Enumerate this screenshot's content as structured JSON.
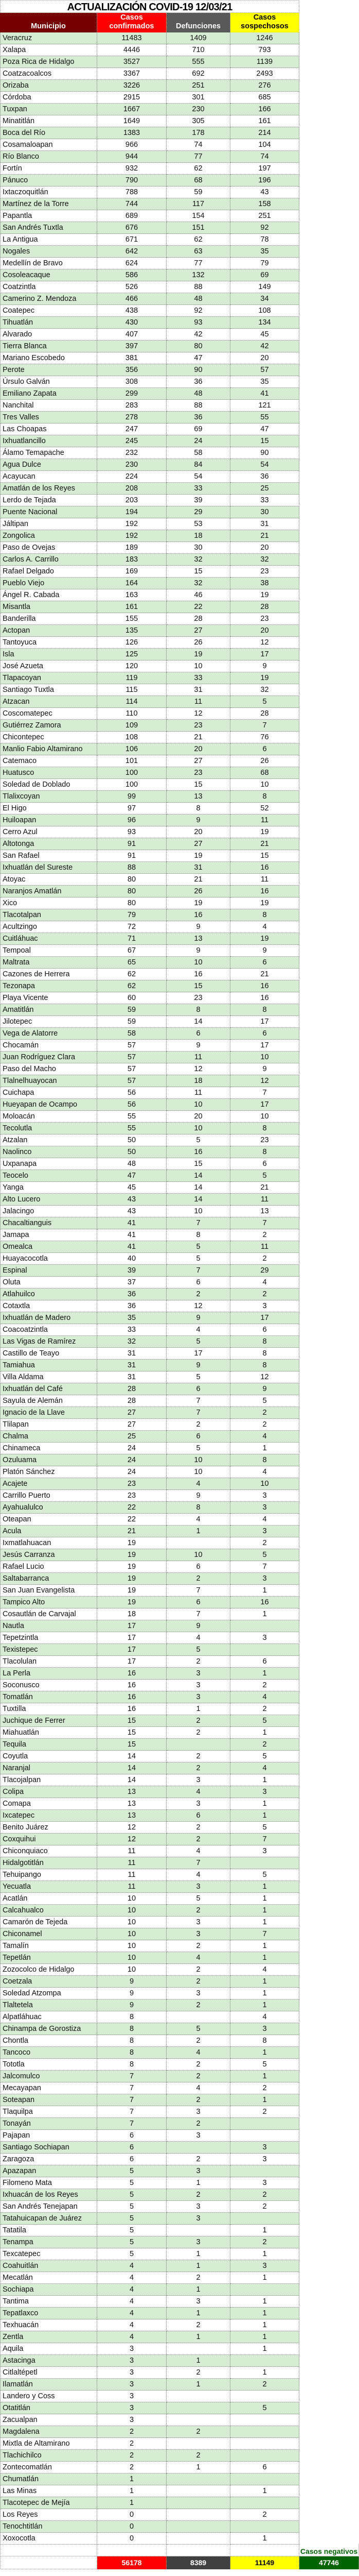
{
  "title": "ACTUALIZACIÓN COVID-19 12/03/21",
  "headers": {
    "municipio": "Municipio",
    "confirmados": "Casos confirmados",
    "defunciones": "Defunciones",
    "sospechosos": "Casos sospechosos"
  },
  "colors": {
    "municipio_header": "#760000",
    "confirmados": "#ff0000",
    "defunciones": "#595959",
    "defunciones_total": "#404040",
    "sospechosos": "#ffff00",
    "negativos": "#006400",
    "row_alt": "#d6ecd3"
  },
  "rows": [
    [
      "Veracruz",
      "11483",
      "1409",
      "1246"
    ],
    [
      "Xalapa",
      "4446",
      "710",
      "793"
    ],
    [
      "Poza Rica de Hidalgo",
      "3527",
      "555",
      "1139"
    ],
    [
      "Coatzacoalcos",
      "3367",
      "692",
      "2493"
    ],
    [
      "Orizaba",
      "3226",
      "251",
      "276"
    ],
    [
      "Córdoba",
      "2915",
      "301",
      "685"
    ],
    [
      "Tuxpan",
      "1667",
      "230",
      "166"
    ],
    [
      "Minatitlán",
      "1649",
      "305",
      "161"
    ],
    [
      "Boca del Río",
      "1383",
      "178",
      "214"
    ],
    [
      "Cosamaloapan",
      "966",
      "74",
      "104"
    ],
    [
      "Río Blanco",
      "944",
      "77",
      "74"
    ],
    [
      "Fortín",
      "932",
      "62",
      "197"
    ],
    [
      "Pánuco",
      "790",
      "68",
      "196"
    ],
    [
      "Ixtaczoquitlán",
      "788",
      "59",
      "43"
    ],
    [
      "Martínez de la Torre",
      "744",
      "117",
      "158"
    ],
    [
      "Papantla",
      "689",
      "154",
      "251"
    ],
    [
      "San Andrés Tuxtla",
      "676",
      "151",
      "92"
    ],
    [
      "La Antigua",
      "671",
      "62",
      "78"
    ],
    [
      "Nogales",
      "642",
      "63",
      "35"
    ],
    [
      "Medellín de Bravo",
      "624",
      "77",
      "79"
    ],
    [
      "Cosoleacaque",
      "586",
      "132",
      "69"
    ],
    [
      "Coatzintla",
      "526",
      "88",
      "149"
    ],
    [
      "Camerino Z. Mendoza",
      "466",
      "48",
      "34"
    ],
    [
      "Coatepec",
      "438",
      "92",
      "108"
    ],
    [
      "Tihuatlán",
      "430",
      "93",
      "134"
    ],
    [
      "Alvarado",
      "407",
      "42",
      "45"
    ],
    [
      "Tierra Blanca",
      "397",
      "80",
      "42"
    ],
    [
      "Mariano Escobedo",
      "381",
      "47",
      "20"
    ],
    [
      "Perote",
      "356",
      "90",
      "57"
    ],
    [
      "Úrsulo Galván",
      "308",
      "36",
      "35"
    ],
    [
      "Emiliano Zapata",
      "299",
      "48",
      "41"
    ],
    [
      "Nanchital",
      "283",
      "88",
      "121"
    ],
    [
      "Tres Valles",
      "278",
      "36",
      "55"
    ],
    [
      "Las Choapas",
      "247",
      "69",
      "47"
    ],
    [
      "Ixhuatlancillo",
      "245",
      "24",
      "15"
    ],
    [
      "Álamo Temapache",
      "232",
      "58",
      "90"
    ],
    [
      "Agua Dulce",
      "230",
      "84",
      "54"
    ],
    [
      "Acayucan",
      "224",
      "54",
      "36"
    ],
    [
      "Amatlán de los Reyes",
      "208",
      "33",
      "25"
    ],
    [
      "Lerdo de Tejada",
      "203",
      "39",
      "33"
    ],
    [
      "Puente Nacional",
      "194",
      "29",
      "30"
    ],
    [
      "Jáltipan",
      "192",
      "53",
      "31"
    ],
    [
      "Zongolica",
      "192",
      "18",
      "21"
    ],
    [
      "Paso de Ovejas",
      "189",
      "30",
      "20"
    ],
    [
      "Carlos A. Carrillo",
      "183",
      "32",
      "32"
    ],
    [
      "Rafael Delgado",
      "169",
      "15",
      "23"
    ],
    [
      "Pueblo Viejo",
      "164",
      "32",
      "38"
    ],
    [
      "Ángel R. Cabada",
      "163",
      "46",
      "19"
    ],
    [
      "Misantla",
      "161",
      "22",
      "28"
    ],
    [
      "Banderilla",
      "155",
      "28",
      "23"
    ],
    [
      "Actopan",
      "135",
      "27",
      "20"
    ],
    [
      "Tantoyuca",
      "126",
      "26",
      "12"
    ],
    [
      "Isla",
      "125",
      "19",
      "17"
    ],
    [
      "José Azueta",
      "120",
      "10",
      "9"
    ],
    [
      "Tlapacoyan",
      "119",
      "33",
      "19"
    ],
    [
      "Santiago Tuxtla",
      "115",
      "31",
      "32"
    ],
    [
      "Atzacan",
      "114",
      "11",
      "5"
    ],
    [
      "Coscomatepec",
      "110",
      "12",
      "28"
    ],
    [
      "Gutiérrez Zamora",
      "109",
      "23",
      "7"
    ],
    [
      "Chicontepec",
      "108",
      "21",
      "76"
    ],
    [
      "Manlio Fabio Altamirano",
      "106",
      "20",
      "6"
    ],
    [
      "Catemaco",
      "101",
      "27",
      "26"
    ],
    [
      "Huatusco",
      "100",
      "23",
      "68"
    ],
    [
      "Soledad de Doblado",
      "100",
      "15",
      "10"
    ],
    [
      "Tlalixcoyan",
      "99",
      "13",
      "8"
    ],
    [
      "El Higo",
      "97",
      "8",
      "52"
    ],
    [
      "Huiloapan",
      "96",
      "9",
      "11"
    ],
    [
      "Cerro Azul",
      "93",
      "20",
      "19"
    ],
    [
      "Altotonga",
      "91",
      "27",
      "21"
    ],
    [
      "San Rafael",
      "91",
      "19",
      "15"
    ],
    [
      "Ixhuatlán del Sureste",
      "88",
      "31",
      "16"
    ],
    [
      "Atoyac",
      "80",
      "21",
      "11"
    ],
    [
      "Naranjos Amatlán",
      "80",
      "26",
      "16"
    ],
    [
      "Xico",
      "80",
      "19",
      "19"
    ],
    [
      "Tlacotalpan",
      "79",
      "16",
      "8"
    ],
    [
      "Acultzingo",
      "72",
      "9",
      "4"
    ],
    [
      "Cuitláhuac",
      "71",
      "13",
      "19"
    ],
    [
      "Tempoal",
      "67",
      "9",
      "9"
    ],
    [
      "Maltrata",
      "65",
      "10",
      "6"
    ],
    [
      "Cazones de Herrera",
      "62",
      "16",
      "21"
    ],
    [
      "Tezonapa",
      "62",
      "15",
      "16"
    ],
    [
      "Playa Vicente",
      "60",
      "23",
      "16"
    ],
    [
      "Amatitlán",
      "59",
      "8",
      "8"
    ],
    [
      "Jilotepec",
      "59",
      "14",
      "17"
    ],
    [
      "Vega de Alatorre",
      "58",
      "6",
      "6"
    ],
    [
      "Chocamán",
      "57",
      "9",
      "17"
    ],
    [
      "Juan Rodríguez Clara",
      "57",
      "11",
      "10"
    ],
    [
      "Paso del Macho",
      "57",
      "12",
      "9"
    ],
    [
      "Tlalnelhuayocan",
      "57",
      "18",
      "12"
    ],
    [
      "Cuichapa",
      "56",
      "11",
      "7"
    ],
    [
      "Hueyapan de Ocampo",
      "56",
      "10",
      "17"
    ],
    [
      "Moloacán",
      "55",
      "20",
      "10"
    ],
    [
      "Tecolutla",
      "55",
      "10",
      "8"
    ],
    [
      "Atzalan",
      "50",
      "5",
      "23"
    ],
    [
      "Naolinco",
      "50",
      "16",
      "8"
    ],
    [
      "Uxpanapa",
      "48",
      "15",
      "6"
    ],
    [
      "Teocelo",
      "47",
      "14",
      "5"
    ],
    [
      "Yanga",
      "45",
      "14",
      "21"
    ],
    [
      "Alto Lucero",
      "43",
      "14",
      "11"
    ],
    [
      "Jalacingo",
      "43",
      "10",
      "13"
    ],
    [
      "Chacaltianguis",
      "41",
      "7",
      "7"
    ],
    [
      "Jamapa",
      "41",
      "8",
      "2"
    ],
    [
      "Omealca",
      "41",
      "5",
      "11"
    ],
    [
      "Huayacocotla",
      "40",
      "5",
      "2"
    ],
    [
      "Espinal",
      "39",
      "7",
      "29"
    ],
    [
      "Oluta",
      "37",
      "6",
      "4"
    ],
    [
      "Atlahuilco",
      "36",
      "2",
      "2"
    ],
    [
      "Cotaxtla",
      "36",
      "12",
      "3"
    ],
    [
      "Ixhuatlán de Madero",
      "35",
      "9",
      "17"
    ],
    [
      "Coacoatzintla",
      "33",
      "4",
      "6"
    ],
    [
      "Las Vigas de Ramírez",
      "32",
      "5",
      "8"
    ],
    [
      "Castillo de Teayo",
      "31",
      "17",
      "8"
    ],
    [
      "Tamiahua",
      "31",
      "9",
      "8"
    ],
    [
      "Villa Aldama",
      "31",
      "5",
      "12"
    ],
    [
      "Ixhuatlán del Café",
      "28",
      "6",
      "9"
    ],
    [
      "Sayula de Alemán",
      "28",
      "7",
      "5"
    ],
    [
      "Ignacio de la Llave",
      "27",
      "7",
      "2"
    ],
    [
      "Tlilapan",
      "27",
      "2",
      "2"
    ],
    [
      "Chalma",
      "25",
      "6",
      "4"
    ],
    [
      "Chinameca",
      "24",
      "5",
      "1"
    ],
    [
      "Ozuluama",
      "24",
      "10",
      "8"
    ],
    [
      "Platón Sánchez",
      "24",
      "10",
      "4"
    ],
    [
      "Acajete",
      "23",
      "4",
      "10"
    ],
    [
      "Carrillo Puerto",
      "23",
      "9",
      "3"
    ],
    [
      "Ayahualulco",
      "22",
      "8",
      "3"
    ],
    [
      "Oteapan",
      "22",
      "4",
      "4"
    ],
    [
      "Acula",
      "21",
      "1",
      "3"
    ],
    [
      "Ixmatlahuacan",
      "19",
      "",
      "2"
    ],
    [
      "Jesús Carranza",
      "19",
      "10",
      "5"
    ],
    [
      "Rafael Lucio",
      "19",
      "6",
      "7"
    ],
    [
      "Saltabarranca",
      "19",
      "2",
      "3"
    ],
    [
      "San Juan Evangelista",
      "19",
      "7",
      "1"
    ],
    [
      "Tampico Alto",
      "19",
      "6",
      "16"
    ],
    [
      "Cosautlán de Carvajal",
      "18",
      "7",
      "1"
    ],
    [
      "Nautla",
      "17",
      "9",
      ""
    ],
    [
      "Tepetzintla",
      "17",
      "4",
      "3"
    ],
    [
      "Texistepec",
      "17",
      "5",
      ""
    ],
    [
      "Tlacolulan",
      "17",
      "2",
      "6"
    ],
    [
      "La Perla",
      "16",
      "3",
      "1"
    ],
    [
      "Soconusco",
      "16",
      "3",
      "2"
    ],
    [
      "Tomatlán",
      "16",
      "3",
      "4"
    ],
    [
      "Tuxtilla",
      "16",
      "1",
      "2"
    ],
    [
      "Juchique de Ferrer",
      "15",
      "2",
      "5"
    ],
    [
      "Miahuatlán",
      "15",
      "2",
      "1"
    ],
    [
      "Tequila",
      "15",
      "",
      "2"
    ],
    [
      "Coyutla",
      "14",
      "2",
      "5"
    ],
    [
      "Naranjal",
      "14",
      "2",
      "4"
    ],
    [
      "Tlacojalpan",
      "14",
      "3",
      "1"
    ],
    [
      "Colipa",
      "13",
      "4",
      "3"
    ],
    [
      "Comapa",
      "13",
      "3",
      "1"
    ],
    [
      "Ixcatepec",
      "13",
      "6",
      "1"
    ],
    [
      "Benito Juárez",
      "12",
      "2",
      "5"
    ],
    [
      "Coxquihui",
      "12",
      "2",
      "7"
    ],
    [
      "Chiconquiaco",
      "11",
      "4",
      "3"
    ],
    [
      "Hidalgotitlán",
      "11",
      "7",
      ""
    ],
    [
      "Tehuipango",
      "11",
      "4",
      "5"
    ],
    [
      "Yecuatla",
      "11",
      "3",
      "1"
    ],
    [
      "Acatlán",
      "10",
      "5",
      "1"
    ],
    [
      "Calcahualco",
      "10",
      "2",
      "1"
    ],
    [
      "Camarón de Tejeda",
      "10",
      "3",
      "1"
    ],
    [
      "Chiconamel",
      "10",
      "3",
      "7"
    ],
    [
      "Tamalín",
      "10",
      "2",
      "1"
    ],
    [
      "Tepetlán",
      "10",
      "4",
      "1"
    ],
    [
      "Zozocolco de Hidalgo",
      "10",
      "2",
      "4"
    ],
    [
      "Coetzala",
      "9",
      "2",
      "1"
    ],
    [
      "Soledad Atzompa",
      "9",
      "3",
      "1"
    ],
    [
      "Tlaltetela",
      "9",
      "2",
      "1"
    ],
    [
      "Alpatláhuac",
      "8",
      "",
      "4"
    ],
    [
      "Chinampa de Gorostiza",
      "8",
      "5",
      "3"
    ],
    [
      "Chontla",
      "8",
      "2",
      "8"
    ],
    [
      "Tancoco",
      "8",
      "4",
      "1"
    ],
    [
      "Tototla",
      "8",
      "2",
      "5"
    ],
    [
      "Jalcomulco",
      "7",
      "2",
      "1"
    ],
    [
      "Mecayapan",
      "7",
      "4",
      "2"
    ],
    [
      "Soteapan",
      "7",
      "2",
      "1"
    ],
    [
      "Tlaquilpa",
      "7",
      "3",
      "2"
    ],
    [
      "Tonayán",
      "7",
      "2",
      ""
    ],
    [
      "Pajapan",
      "6",
      "3",
      ""
    ],
    [
      "Santiago Sochiapan",
      "6",
      "",
      "3"
    ],
    [
      "Zaragoza",
      "6",
      "2",
      "3"
    ],
    [
      "Apazapan",
      "5",
      "3",
      ""
    ],
    [
      "Filomeno Mata",
      "5",
      "1",
      "3"
    ],
    [
      "Ixhuacán de los Reyes",
      "5",
      "2",
      "2"
    ],
    [
      "San Andrés Tenejapan",
      "5",
      "3",
      "2"
    ],
    [
      "Tatahuicapan de Juárez",
      "5",
      "3",
      ""
    ],
    [
      "Tatatila",
      "5",
      "",
      "1"
    ],
    [
      "Tenampa",
      "5",
      "3",
      "2"
    ],
    [
      "Texcatepec",
      "5",
      "1",
      "1"
    ],
    [
      "Coahuitlán",
      "4",
      "1",
      "3"
    ],
    [
      "Mecatlán",
      "4",
      "2",
      "1"
    ],
    [
      "Sochiapa",
      "4",
      "1",
      ""
    ],
    [
      "Tantima",
      "4",
      "3",
      "1"
    ],
    [
      "Tepatlaxco",
      "4",
      "1",
      "1"
    ],
    [
      "Texhuacán",
      "4",
      "2",
      "1"
    ],
    [
      "Zentla",
      "4",
      "1",
      "1"
    ],
    [
      "Aquila",
      "3",
      "",
      "1"
    ],
    [
      "Astacinga",
      "3",
      "1",
      ""
    ],
    [
      "Citlaltépetl",
      "3",
      "2",
      "1"
    ],
    [
      "Ilamatlán",
      "3",
      "1",
      "2"
    ],
    [
      "Landero y Coss",
      "3",
      "",
      ""
    ],
    [
      "Otatitlán",
      "3",
      "",
      "5"
    ],
    [
      "Zacualpan",
      "3",
      "",
      ""
    ],
    [
      "Magdalena",
      "2",
      "2",
      ""
    ],
    [
      "Mixtla de Altamirano",
      "2",
      "",
      ""
    ],
    [
      "Tlachichilco",
      "2",
      "2",
      ""
    ],
    [
      "Zontecomatlán",
      "2",
      "1",
      "6"
    ],
    [
      "Chumatlán",
      "1",
      "",
      ""
    ],
    [
      "Las Minas",
      "1",
      "",
      "1"
    ],
    [
      "Tlacotepec de Mejía",
      "1",
      "",
      ""
    ],
    [
      "Los Reyes",
      "0",
      "",
      "2"
    ],
    [
      "Tenochtitlán",
      "0",
      "",
      ""
    ],
    [
      "Xoxocotla",
      "0",
      "",
      "1"
    ]
  ],
  "totals": {
    "negativos_label": "Casos negativos",
    "confirmados": "56178",
    "defunciones": "8389",
    "sospechosos": "11149",
    "negativos": "47746"
  }
}
